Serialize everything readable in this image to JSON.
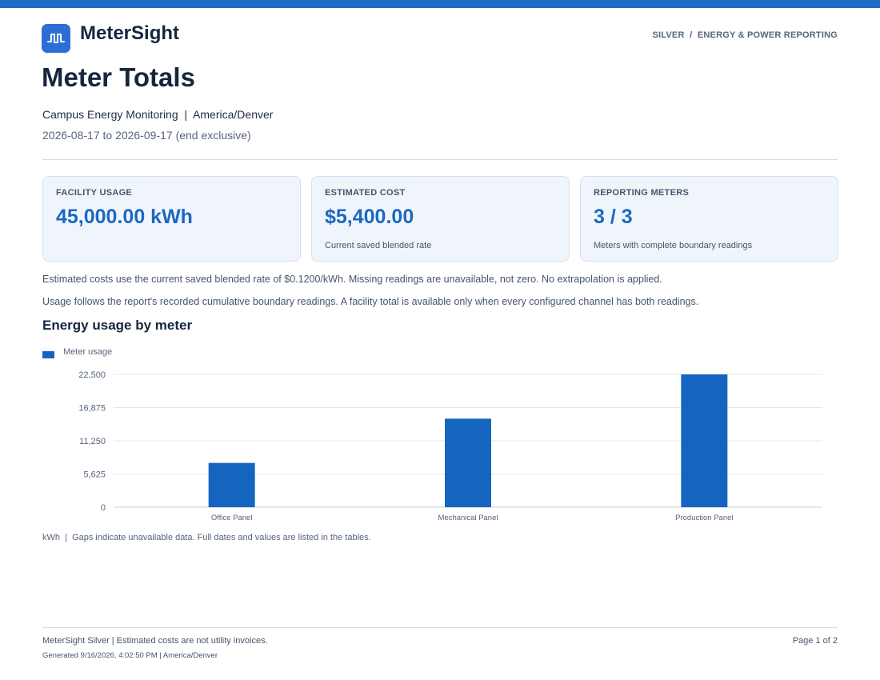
{
  "brand": {
    "name": "MeterSight",
    "logo_icon": "meter-pulse-icon",
    "accent_color": "#1f6bc4"
  },
  "header": {
    "breadcrumb": "SILVER  /  ENERGY & POWER REPORTING"
  },
  "report": {
    "title": "Meter Totals",
    "subtitle": "Campus Energy Monitoring  |  America/Denver",
    "date_range": "2026-08-17 to 2026-09-17 (end exclusive)"
  },
  "cards": [
    {
      "label": "FACILITY USAGE",
      "value": "45,000.00 kWh",
      "note": ""
    },
    {
      "label": "ESTIMATED COST",
      "value": "$5,400.00",
      "note": "Current saved blended rate"
    },
    {
      "label": "REPORTING METERS",
      "value": "3 / 3",
      "note": "Meters with complete boundary readings"
    }
  ],
  "notes": {
    "cost_note": "Estimated costs use the current saved blended rate of $0.1200/kWh. Missing readings are unavailable, not zero. No extrapolation is applied.",
    "usage_note": "Usage follows the report's recorded cumulative boundary readings. A facility total is available only when every configured channel has both readings."
  },
  "chart_section": {
    "title": "Energy usage by meter",
    "caption": "kWh  |  Gaps indicate unavailable data. Full dates and values are listed in the tables."
  },
  "chart_data": {
    "type": "bar",
    "categories": [
      "Office Panel",
      "Mechanical Panel",
      "Production Panel"
    ],
    "series": [
      {
        "name": "Meter usage",
        "values": [
          7500,
          15000,
          22500
        ],
        "color": "#1565c0"
      }
    ],
    "ylim": [
      0,
      22500
    ],
    "yticks": [
      "0",
      "5,625",
      "11,250",
      "16,875",
      "22,500"
    ],
    "ytick_values": [
      0,
      5625,
      11250,
      16875,
      22500
    ],
    "grid": true,
    "legend_position": "top-left"
  },
  "footer": {
    "left": "MeterSight Silver | Estimated costs are not utility invoices.",
    "generated": "Generated 9/16/2026, 4:02:50 PM | America/Denver",
    "page": "Page 1 of 2"
  }
}
